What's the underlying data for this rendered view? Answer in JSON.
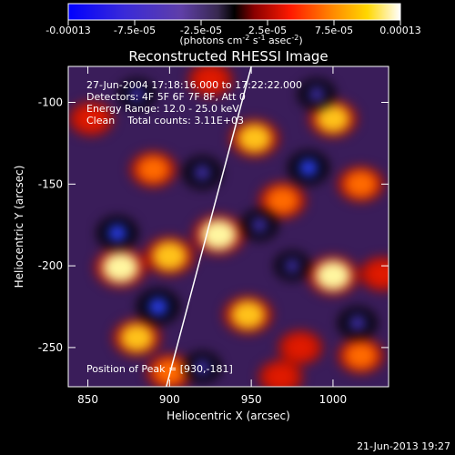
{
  "chart_data": {
    "type": "heatmap",
    "title": "Reconstructed RHESSI Image",
    "xlabel": "Heliocentric X (arcsec)",
    "ylabel": "Heliocentric Y (arcsec)",
    "xlim": [
      838,
      1034
    ],
    "ylim": [
      -274,
      -78
    ],
    "xticks": [
      850,
      900,
      950,
      1000
    ],
    "yticks": [
      -100,
      -150,
      -200,
      -250
    ],
    "colorbar": {
      "min": -0.00013,
      "max": 0.00013,
      "ticks": [
        "-0.00013",
        "-7.5e-05",
        "-2.5e-05",
        "2.5e-05",
        "7.5e-05",
        "0.00013"
      ],
      "label_main": "(photons cm",
      "label_exp1": "-2",
      "label_mid": " s",
      "label_exp2": "-1",
      "label_mid2": " asec",
      "label_exp3": "-2",
      "label_end": ")"
    },
    "annotations": [
      "27-Jun-2004 17:18:16.000 to 17:22:22.000",
      "Detectors: 4F 5F 6F 7F 8F, Att 0",
      "Energy Range: 12.0 - 25.0 keV",
      "Clean    Total counts: 3.11E+03"
    ],
    "peak_label": "Position of Peak = [930,-181]",
    "limb_line": [
      [
        898,
        -274
      ],
      [
        950,
        -78
      ]
    ],
    "sources": [
      {
        "x": 870,
        "y": -201,
        "v": 1.0
      },
      {
        "x": 880,
        "y": -244,
        "v": 0.8
      },
      {
        "x": 900,
        "y": -194,
        "v": 0.9
      },
      {
        "x": 930,
        "y": -181,
        "v": 1.0
      },
      {
        "x": 952,
        "y": -122,
        "v": 0.85
      },
      {
        "x": 948,
        "y": -230,
        "v": 0.85
      },
      {
        "x": 1000,
        "y": -206,
        "v": 0.95
      },
      {
        "x": 1000,
        "y": -110,
        "v": 0.8
      },
      {
        "x": 969,
        "y": -160,
        "v": 0.75
      },
      {
        "x": 1017,
        "y": -150,
        "v": 0.7
      },
      {
        "x": 890,
        "y": -141,
        "v": 0.7
      },
      {
        "x": 900,
        "y": -265,
        "v": 0.7
      },
      {
        "x": 1017,
        "y": -255,
        "v": 0.7
      },
      {
        "x": 968,
        "y": -268,
        "v": 0.6
      },
      {
        "x": 925,
        "y": -86,
        "v": 0.6
      },
      {
        "x": 852,
        "y": -110,
        "v": 0.6
      },
      {
        "x": 980,
        "y": -250,
        "v": 0.6
      },
      {
        "x": 1030,
        "y": -205,
        "v": 0.6
      },
      {
        "x": 868,
        "y": -180,
        "v": -0.8
      },
      {
        "x": 893,
        "y": -225,
        "v": -0.9
      },
      {
        "x": 920,
        "y": -143,
        "v": -0.7
      },
      {
        "x": 985,
        "y": -140,
        "v": -0.8
      },
      {
        "x": 880,
        "y": -95,
        "v": -0.6
      },
      {
        "x": 1015,
        "y": -235,
        "v": -0.7
      },
      {
        "x": 955,
        "y": -175,
        "v": -0.6
      },
      {
        "x": 920,
        "y": -262,
        "v": -0.6
      },
      {
        "x": 990,
        "y": -95,
        "v": -0.6
      },
      {
        "x": 975,
        "y": -200,
        "v": -0.5
      }
    ]
  },
  "footer": {
    "timestamp": "21-Jun-2013 19:27"
  }
}
